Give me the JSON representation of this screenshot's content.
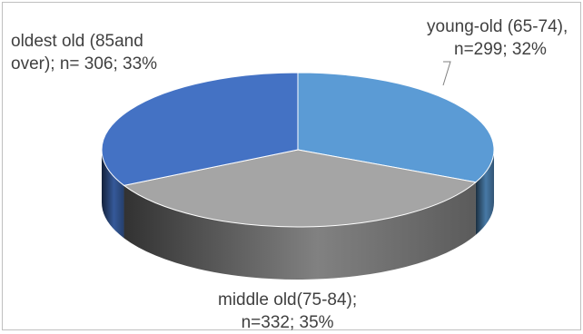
{
  "chart_data": {
    "type": "pie",
    "style": "3d",
    "slices": [
      {
        "label_line1": "young-old (65-74),",
        "label_line2": "n=299; 32%",
        "n": 299,
        "percent": 32,
        "color": "#5b9bd5"
      },
      {
        "label_line1": "middle old(75-84);",
        "label_line2": "n=332; 35%",
        "n": 332,
        "percent": 35,
        "color": "#a5a5a5"
      },
      {
        "label_line1": "oldest old (85and",
        "label_line2": "over);  n= 306; 33%",
        "n": 306,
        "percent": 33,
        "color": "#4472c4"
      }
    ],
    "legend": "none",
    "title": ""
  }
}
